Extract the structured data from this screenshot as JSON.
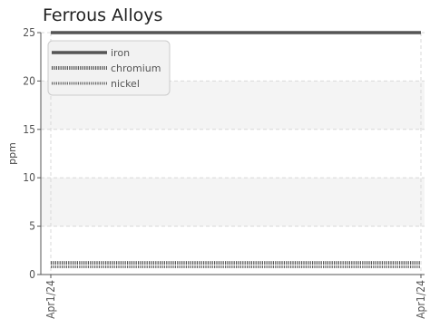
{
  "chart_data": {
    "type": "line",
    "title": "Ferrous Alloys",
    "xlabel": "",
    "ylabel": "ppm",
    "x": [
      "Apr1/24",
      "Apr1/24"
    ],
    "x_tick_labels": [
      "Apr1/24",
      "Apr1/24"
    ],
    "ylim": [
      0,
      25
    ],
    "y_ticks": [
      0,
      5,
      10,
      15,
      20,
      25
    ],
    "grid": true,
    "legend_position": "top-left",
    "series": [
      {
        "name": "iron",
        "values": [
          25,
          25
        ],
        "color": "#555555",
        "style": "solid"
      },
      {
        "name": "chromium",
        "values": [
          1.2,
          1.2
        ],
        "color": "#555555",
        "style": "dotted-heavy"
      },
      {
        "name": "nickel",
        "values": [
          0.8,
          0.8
        ],
        "color": "#666666",
        "style": "dotted"
      }
    ]
  }
}
